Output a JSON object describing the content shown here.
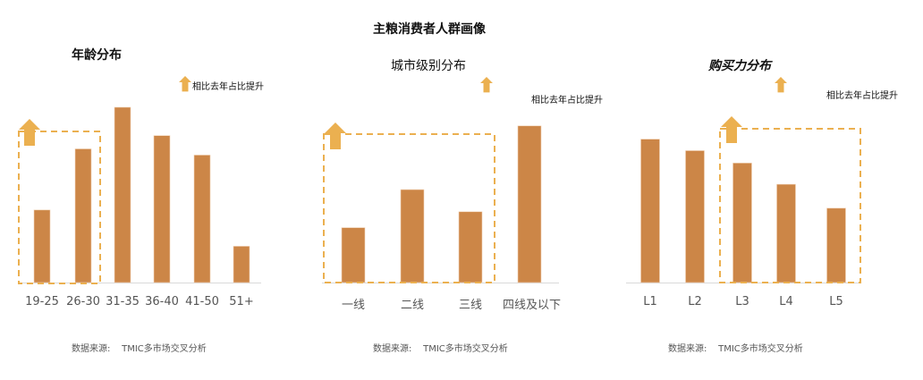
{
  "title": "主粮消费者人群画像",
  "colors": {
    "bar": "#CC8647",
    "highlight": "#EBB050",
    "axis": "#D9D9D9"
  },
  "source_label": "数据来源:",
  "source_value": "TMIC多市场交叉分析",
  "chart_data": [
    {
      "type": "bar",
      "title": "年龄分布",
      "legend": "相比去年占比提升",
      "categories": [
        "19-25",
        "26-30",
        "31-35",
        "36-40",
        "41-50",
        "51+"
      ],
      "values": [
        82,
        151,
        198,
        166,
        144,
        41
      ],
      "highlighted": [
        "19-25",
        "26-30"
      ],
      "ylim": [
        0,
        200
      ]
    },
    {
      "type": "bar",
      "title": "城市级别分布",
      "legend": "相比去年占比提升",
      "categories": [
        "一线",
        "二线",
        "三线",
        "四线及以下"
      ],
      "values": [
        62,
        105,
        80,
        177
      ],
      "highlighted": [
        "一线",
        "二线",
        "三线"
      ],
      "ylim": [
        0,
        200
      ]
    },
    {
      "type": "bar",
      "title": "购买力分布",
      "legend": "相比去年占比提升",
      "categories": [
        "L1",
        "L2",
        "L3",
        "L4",
        "L5"
      ],
      "values": [
        162,
        149,
        135,
        111,
        84
      ],
      "highlighted": [
        "L3",
        "L4",
        "L5"
      ],
      "ylim": [
        0,
        200
      ]
    }
  ]
}
